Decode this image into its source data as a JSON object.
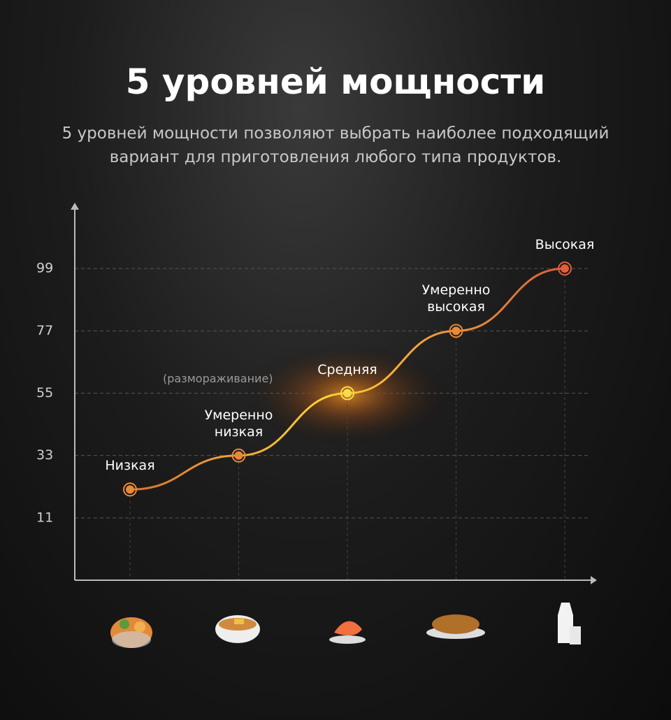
{
  "chart_data": {
    "type": "line",
    "title": "5 уровней мощности",
    "subtitle": "5 уровней мощности позволяют выбрать наиболее подходящий вариант для приготовления любого типа продуктов.",
    "annotation": "(размораживание)",
    "categories": [
      "Низкая",
      "Умеренно низкая",
      "Средняя",
      "Умеренно высокая",
      "Высокая"
    ],
    "values": [
      21,
      33,
      55,
      77,
      99
    ],
    "point_colors": [
      "#e8893a",
      "#e8893a",
      "#f7dc4a",
      "#e8893a",
      "#e0603a"
    ],
    "color": "#f0a030",
    "ylim": [
      -11,
      121
    ],
    "yticks": [
      11,
      33,
      55,
      77,
      99
    ],
    "grid": true
  }
}
